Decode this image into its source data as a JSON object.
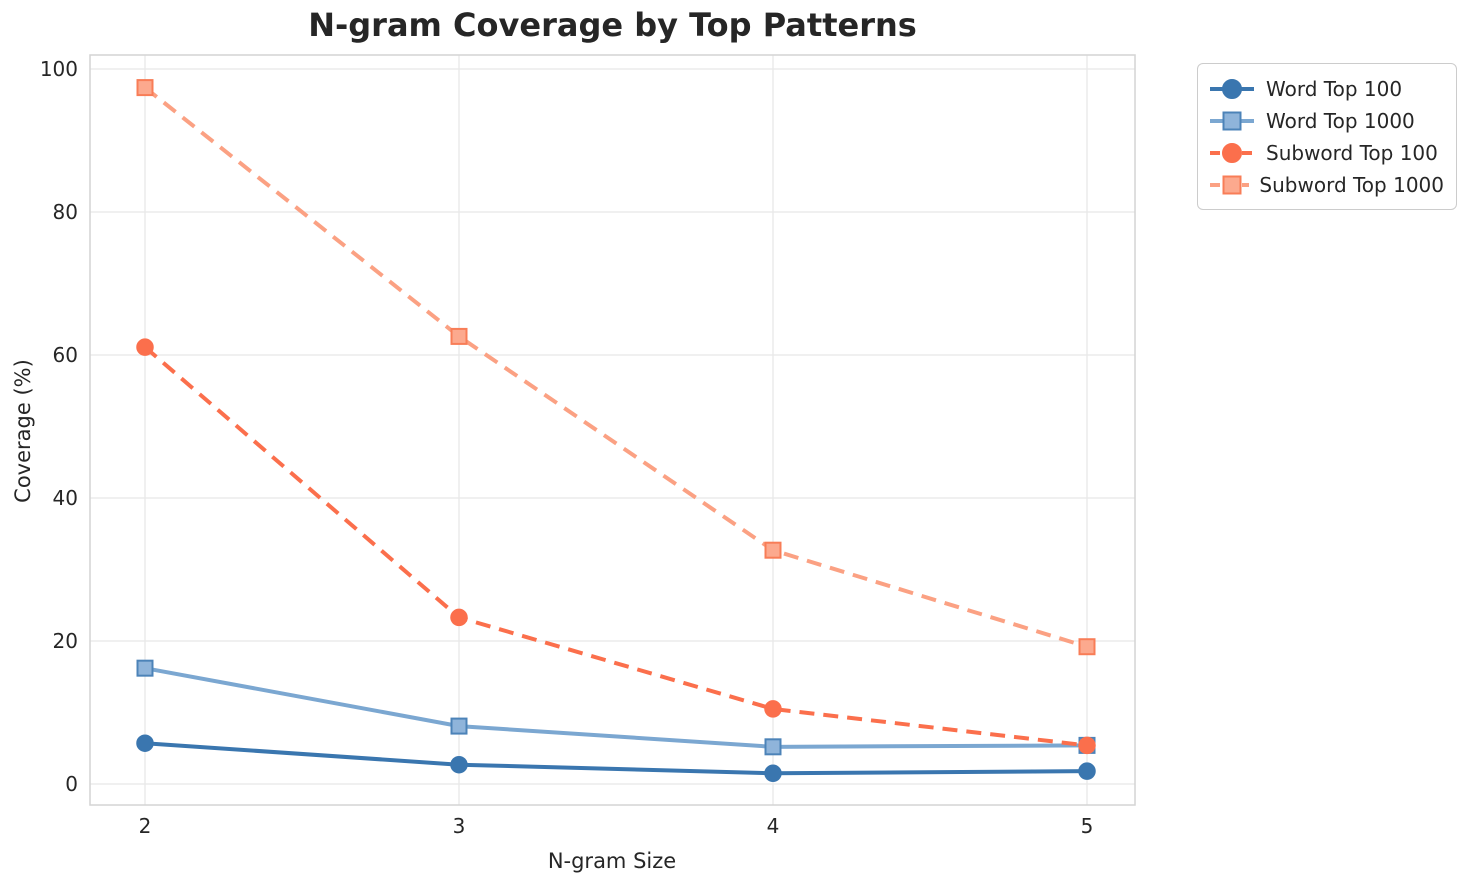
{
  "chart_data": {
    "type": "line",
    "title": "N-gram Coverage by Top Patterns",
    "xlabel": "N-gram Size",
    "ylabel": "Coverage (%)",
    "x": [
      2,
      3,
      4,
      5
    ],
    "xticks": [
      2,
      3,
      4,
      5
    ],
    "yticks": [
      0,
      20,
      40,
      60,
      80,
      100
    ],
    "ylim": [
      -3,
      102
    ],
    "grid": true,
    "legend_position": "outside upper right",
    "grid_color": "#e8e8e8",
    "spine_color": "#d4d4d4",
    "text_color": "#262626",
    "series": [
      {
        "name": "Word Top 100",
        "values": [
          5.7,
          2.7,
          1.5,
          1.8
        ],
        "color": "#3A76AF",
        "marker": "circle",
        "marker_fill": "#3A76AF",
        "marker_edge": "#3A76AF",
        "dash": false
      },
      {
        "name": "Word Top 1000",
        "values": [
          16.2,
          8.1,
          5.2,
          5.4
        ],
        "color": "#7BA7D1",
        "marker": "square",
        "marker_fill": "#8FB4DA",
        "marker_edge": "#4C83B8",
        "dash": false
      },
      {
        "name": "Subword Top 100",
        "values": [
          61.1,
          23.3,
          10.5,
          5.4
        ],
        "color": "#FB6F4C",
        "marker": "circle",
        "marker_fill": "#FB6F4C",
        "marker_edge": "#FB6F4C",
        "dash": true
      },
      {
        "name": "Subword Top 1000",
        "values": [
          97.4,
          62.6,
          32.7,
          19.2
        ],
        "color": "#FBA183",
        "marker": "square",
        "marker_fill": "#FCA98E",
        "marker_edge": "#F87D57",
        "dash": true
      }
    ]
  }
}
